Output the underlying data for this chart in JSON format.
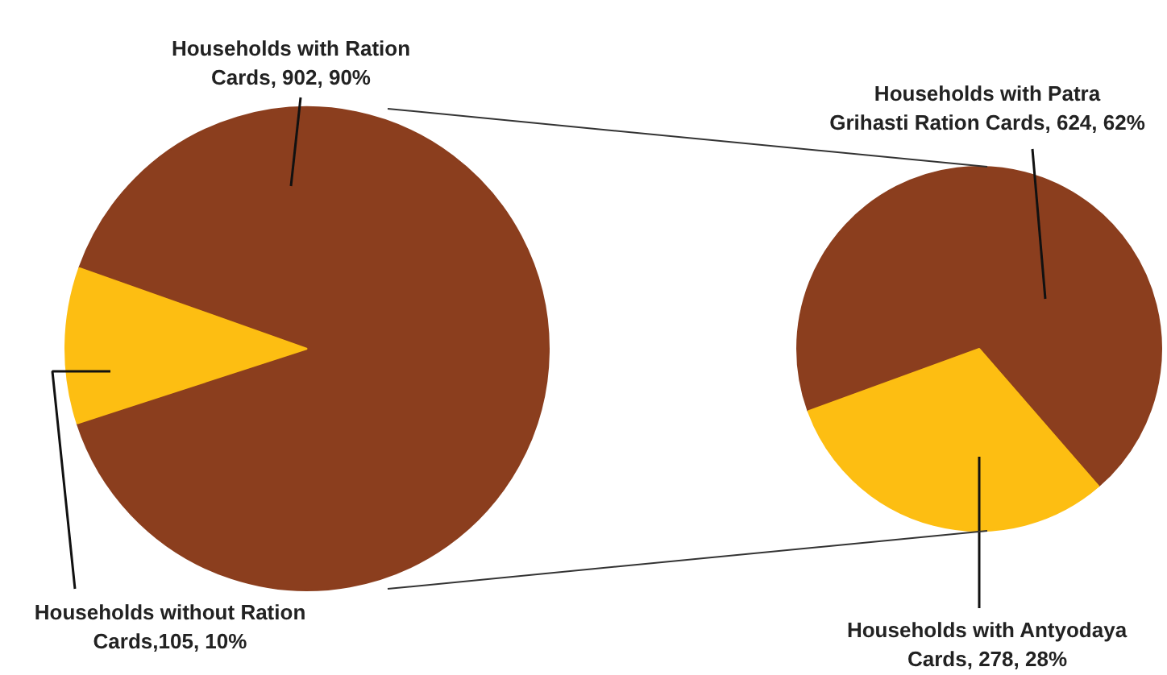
{
  "chart_data": [
    {
      "type": "pie",
      "categories": [
        "Households with Ration\nCards, 902, 90%",
        "Households without Ration\nCards,105, 10%"
      ],
      "values": [
        902,
        105
      ],
      "colors": [
        "#8b3e1e",
        "#fdbe12"
      ]
    },
    {
      "type": "pie",
      "categories": [
        "Households with Patra\nGrihasti Ration Cards, 624, 62%",
        "Households with Antyodaya\nCards, 278, 28%"
      ],
      "values": [
        624,
        278
      ],
      "colors": [
        "#8b3e1e",
        "#fdbe12"
      ]
    }
  ]
}
